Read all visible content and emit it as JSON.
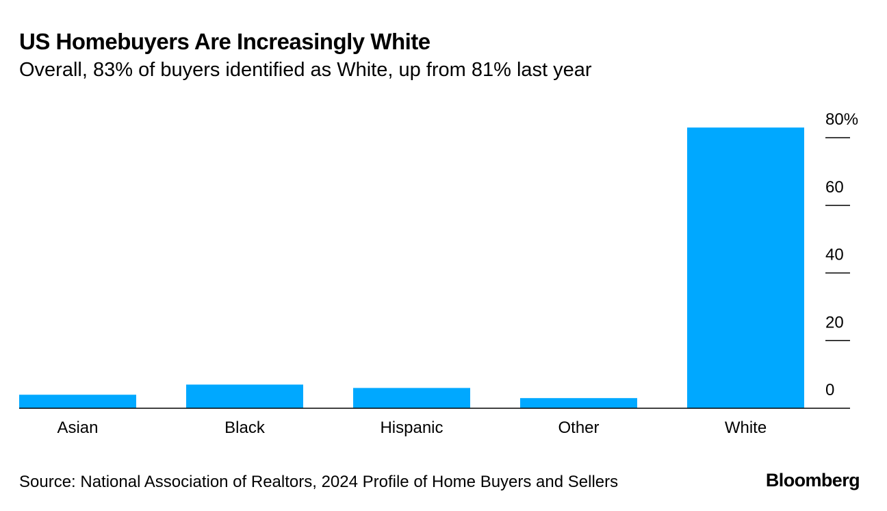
{
  "title": "US Homebuyers Are Increasingly White",
  "subtitle": "Overall, 83% of buyers identified as White, up from 81% last year",
  "chart_data": {
    "type": "bar",
    "title": "US Homebuyers Are Increasingly White",
    "subtitle": "Overall, 83% of buyers identified as White, up from 81% last year",
    "categories": [
      "Asian",
      "Black",
      "Hispanic",
      "Other",
      "White"
    ],
    "values": [
      4,
      7,
      6,
      3,
      83
    ],
    "unit": "%",
    "ylim": [
      0,
      80
    ],
    "yticks": [
      0,
      20,
      40,
      60,
      80
    ],
    "ytick_labels": [
      "0",
      "20",
      "40",
      "60",
      "80%"
    ],
    "xlabel": "",
    "ylabel": "",
    "grid": false,
    "axis_position": "right",
    "bar_color": "#00a8ff"
  },
  "source": "Source: National Association of Realtors, 2024 Profile of Home Buyers and Sellers",
  "brand": "Bloomberg"
}
